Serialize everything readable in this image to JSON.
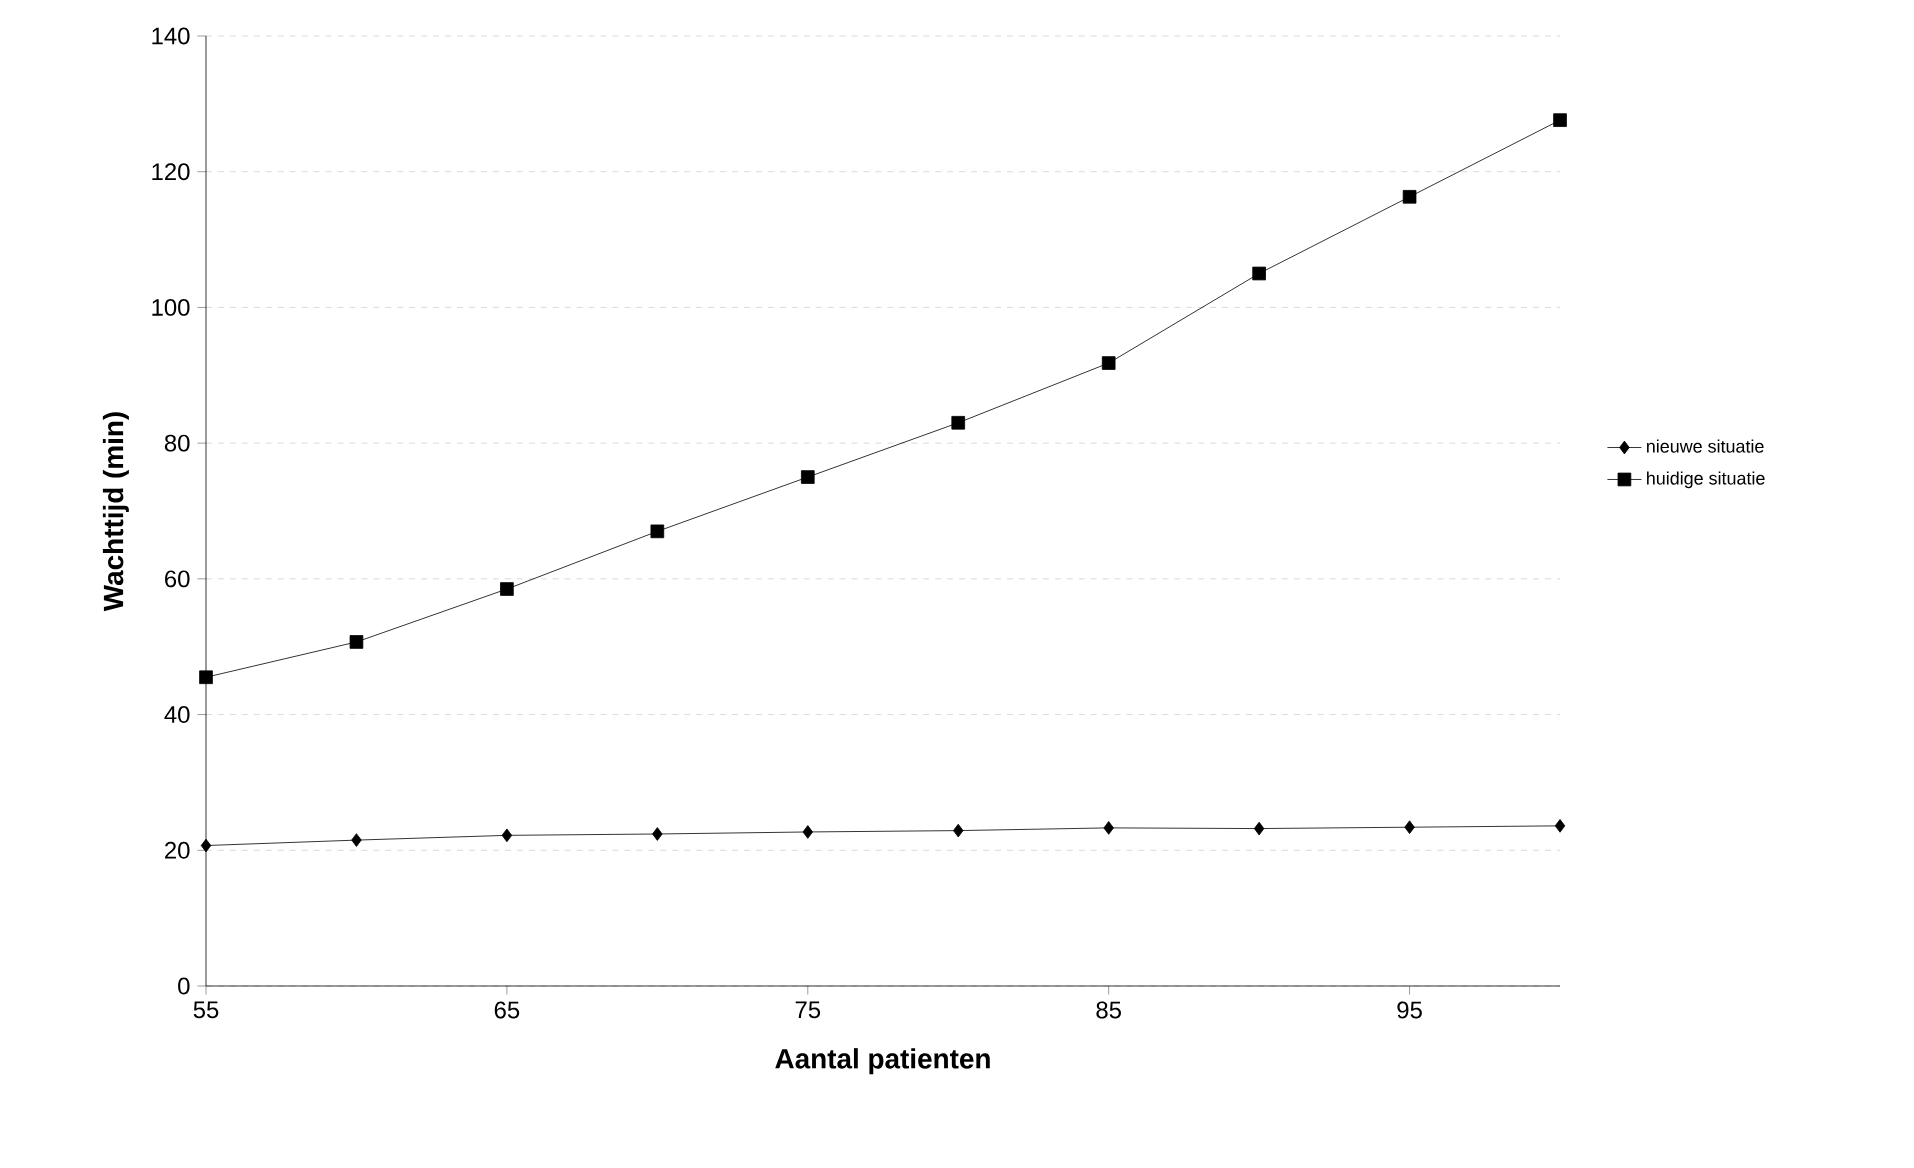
{
  "chart_data": {
    "type": "line",
    "xlabel": "Aantal patienten",
    "ylabel": "Wachttijd (min)",
    "x": [
      55,
      60,
      65,
      70,
      75,
      80,
      85,
      90,
      95,
      100
    ],
    "series": [
      {
        "name": "nieuwe situatie",
        "color": "#000000",
        "marker": "diamond",
        "values": [
          20.7,
          21.5,
          22.2,
          22.4,
          22.7,
          22.9,
          23.3,
          23.2,
          23.4,
          23.6
        ]
      },
      {
        "name": "huidige situatie",
        "color": "#000000",
        "marker": "square",
        "values": [
          45.5,
          50.7,
          58.5,
          67,
          75,
          83,
          91.8,
          105,
          116.3,
          127.6
        ]
      }
    ],
    "xlim": [
      55,
      100
    ],
    "xticks": [
      55,
      65,
      75,
      85,
      95
    ],
    "ylim": [
      0,
      140
    ],
    "yticks": [
      0,
      20,
      40,
      60,
      80,
      100,
      120,
      140
    ],
    "grid": "y",
    "legend": "right",
    "line_style": "solid"
  }
}
